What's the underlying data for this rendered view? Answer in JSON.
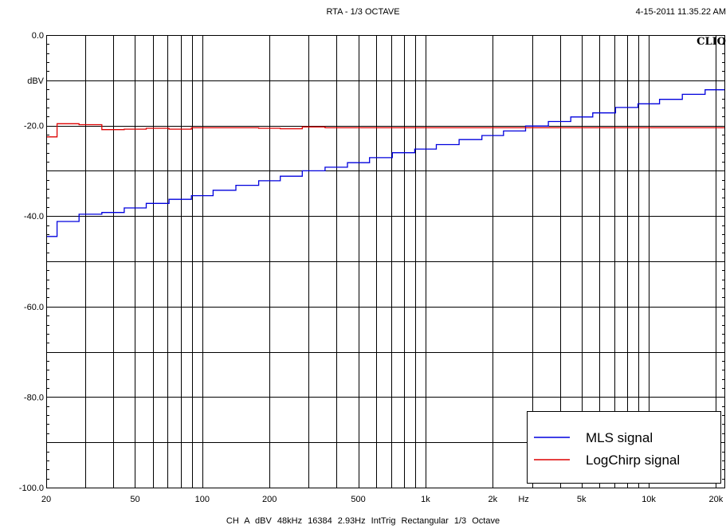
{
  "header": {
    "title": "RTA - 1/3 OCTAVE",
    "timestamp": "4-15-2011 11.35.22 AM",
    "brand": "CLIO"
  },
  "footer": {
    "settings": "CH A  dBV  48kHz  16384  2.93Hz  IntTrig  Rectangular  1/3 Octave"
  },
  "chart_data": {
    "type": "line",
    "title": "RTA - 1/3 OCTAVE",
    "ylabel": "dBV",
    "xlabel": "Hz",
    "xscale": "log",
    "xlim": [
      20,
      22000
    ],
    "ylim": [
      -100,
      0
    ],
    "grid": true,
    "legend_position": "bottom-right",
    "y_ticks": [
      {
        "value": 0,
        "label": "0.0"
      },
      {
        "value": -20,
        "label": "-20.0"
      },
      {
        "value": -40,
        "label": "-40.0"
      },
      {
        "value": -60,
        "label": "-60.0"
      },
      {
        "value": -80,
        "label": "-80.0"
      },
      {
        "value": -100,
        "label": "-100.0"
      }
    ],
    "x_ticks": [
      {
        "value": 20,
        "label": "20"
      },
      {
        "value": 50,
        "label": "50"
      },
      {
        "value": 100,
        "label": "100"
      },
      {
        "value": 200,
        "label": "200"
      },
      {
        "value": 500,
        "label": "500"
      },
      {
        "value": 1000,
        "label": "1k"
      },
      {
        "value": 2000,
        "label": "2k"
      },
      {
        "value": 5000,
        "label": "5k"
      },
      {
        "value": 10000,
        "label": "10k"
      },
      {
        "value": 20000,
        "label": "20k"
      }
    ],
    "x_unit_label": {
      "after_value": 2000,
      "label": "Hz"
    },
    "minor_x_grid": [
      20,
      30,
      40,
      50,
      60,
      70,
      80,
      90,
      100,
      200,
      300,
      400,
      500,
      600,
      700,
      800,
      900,
      1000,
      2000,
      3000,
      4000,
      5000,
      6000,
      7000,
      8000,
      9000,
      10000,
      20000
    ],
    "bands": [
      20,
      25,
      31.5,
      40,
      50,
      63,
      80,
      100,
      125,
      160,
      200,
      250,
      315,
      400,
      500,
      630,
      800,
      1000,
      1250,
      1600,
      2000,
      2500,
      3150,
      4000,
      5000,
      6300,
      8000,
      10000,
      12500,
      16000,
      20000
    ],
    "series": [
      {
        "name": "MLS signal",
        "color": "#0000dd",
        "values": [
          -44.5,
          -41.2,
          -39.6,
          -39.2,
          -38.2,
          -37.2,
          -36.3,
          -35.5,
          -34.3,
          -33.2,
          -32.2,
          -31.2,
          -30.0,
          -29.2,
          -28.2,
          -27.1,
          -26.0,
          -25.2,
          -24.2,
          -23.1,
          -22.2,
          -21.2,
          -20.1,
          -19.1,
          -18.1,
          -17.2,
          -16.0,
          -15.2,
          -14.2,
          -13.1,
          -12.1
        ]
      },
      {
        "name": "LogChirp signal",
        "color": "#dd0000",
        "values": [
          -22.5,
          -19.6,
          -19.8,
          -20.9,
          -20.8,
          -20.6,
          -20.8,
          -20.5,
          -20.5,
          -20.5,
          -20.6,
          -20.7,
          -20.3,
          -20.5,
          -20.5,
          -20.5,
          -20.5,
          -20.5,
          -20.5,
          -20.5,
          -20.5,
          -20.5,
          -20.5,
          -20.5,
          -20.5,
          -20.5,
          -20.5,
          -20.5,
          -20.5,
          -20.5,
          -20.5
        ]
      }
    ]
  }
}
